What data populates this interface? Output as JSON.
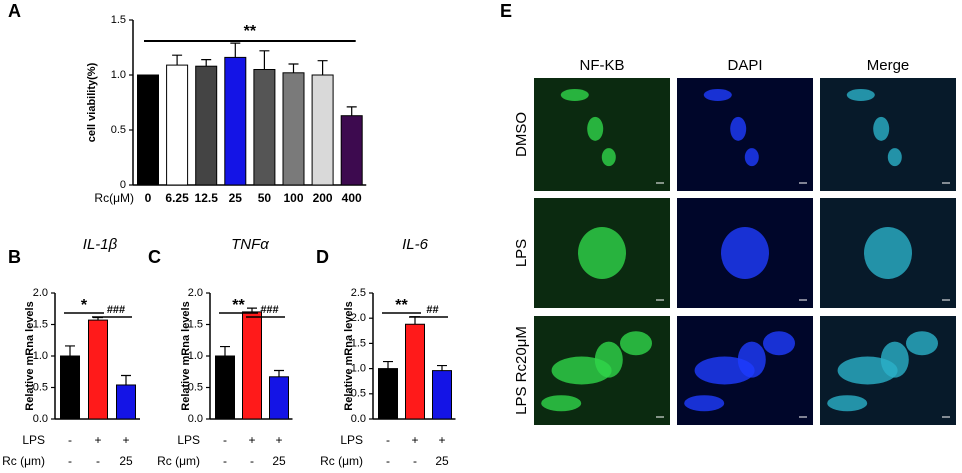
{
  "chart_data": [
    {
      "type": "bar",
      "panel": "A",
      "ylabel": "cell viability(%)",
      "xlabel": "Rc(μM)",
      "categories": [
        "0",
        "6.25",
        "12.5",
        "25",
        "50",
        "100",
        "200",
        "400"
      ],
      "values": [
        1.0,
        1.09,
        1.08,
        1.16,
        1.05,
        1.02,
        1.0,
        0.63
      ],
      "errors": [
        0,
        0.09,
        0.06,
        0.13,
        0.17,
        0.08,
        0.13,
        0.08
      ],
      "colors": [
        "#000000",
        "#ffffff",
        "#444444",
        "#1414e6",
        "#555555",
        "#7a7a7a",
        "#d9d9d9",
        "#3d0a4f"
      ],
      "ylim": [
        0,
        1.5
      ],
      "yticks": [
        0,
        0.5,
        {
          "value": 1.0,
          "label": "1.0"
        },
        1.5
      ],
      "annotations": [
        "**"
      ]
    },
    {
      "type": "bar",
      "panel": "B",
      "title": "IL-1β",
      "ylabel": "Relative mRna levels",
      "categories": [
        null,
        null,
        null
      ],
      "values": [
        1.0,
        1.57,
        0.54
      ],
      "errors": [
        0.16,
        0.04,
        0.15
      ],
      "colors": [
        "#000000",
        "#ff1a1a",
        "#1414e6"
      ],
      "ylim": [
        0,
        2.0
      ],
      "yticks": [
        {
          "value": 0,
          "label": "0.0"
        },
        0.5,
        {
          "value": 1.0,
          "label": "1.0"
        },
        1.5,
        {
          "value": 2.0,
          "label": "2.0"
        }
      ],
      "conditions": [
        {
          "label": "LPS",
          "values": [
            "-",
            "+",
            "+"
          ]
        },
        {
          "label": "Rc (μm)",
          "values": [
            "-",
            "-",
            "25"
          ]
        }
      ],
      "annotations": [
        "*",
        "###"
      ]
    },
    {
      "type": "bar",
      "panel": "C",
      "title": "TNFα",
      "ylabel": "Relative mRna levels",
      "categories": [
        null,
        null,
        null
      ],
      "values": [
        1.0,
        1.7,
        0.67
      ],
      "errors": [
        0.15,
        0.06,
        0.1
      ],
      "colors": [
        "#000000",
        "#ff1a1a",
        "#1414e6"
      ],
      "ylim": [
        0,
        2.0
      ],
      "yticks": [
        {
          "value": 0,
          "label": "0.0"
        },
        0.5,
        {
          "value": 1.0,
          "label": "1.0"
        },
        1.5,
        {
          "value": 2.0,
          "label": "2.0"
        }
      ],
      "conditions": [
        {
          "label": "LPS",
          "values": [
            "-",
            "+",
            "+"
          ]
        },
        {
          "label": "Rc (μm)",
          "values": [
            "-",
            "-",
            "25"
          ]
        }
      ],
      "annotations": [
        "**",
        "###"
      ]
    },
    {
      "type": "bar",
      "panel": "D",
      "title": "IL-6",
      "ylabel": "Relative mRna levels",
      "categories": [
        null,
        null,
        null
      ],
      "values": [
        1.0,
        1.88,
        0.96
      ],
      "errors": [
        0.14,
        0.15,
        0.1
      ],
      "colors": [
        "#000000",
        "#ff1a1a",
        "#1414e6"
      ],
      "ylim": [
        0,
        2.5
      ],
      "yticks": [
        {
          "value": 0,
          "label": "0.0"
        },
        0.5,
        {
          "value": 1.0,
          "label": "1.0"
        },
        1.5,
        {
          "value": 2.0,
          "label": "2.0"
        },
        2.5
      ],
      "conditions": [
        {
          "label": "LPS",
          "values": [
            "-",
            "+",
            "+"
          ]
        },
        {
          "label": "Rc (μm)",
          "values": [
            "-",
            "-",
            "25"
          ]
        }
      ],
      "annotations": [
        "**",
        "##"
      ]
    }
  ],
  "panel_e": {
    "panel": "E",
    "columns": [
      "NF-KB",
      "DAPI",
      "Merge"
    ],
    "rows": [
      "DMSO",
      "LPS",
      "LPS Rc20μM"
    ]
  }
}
